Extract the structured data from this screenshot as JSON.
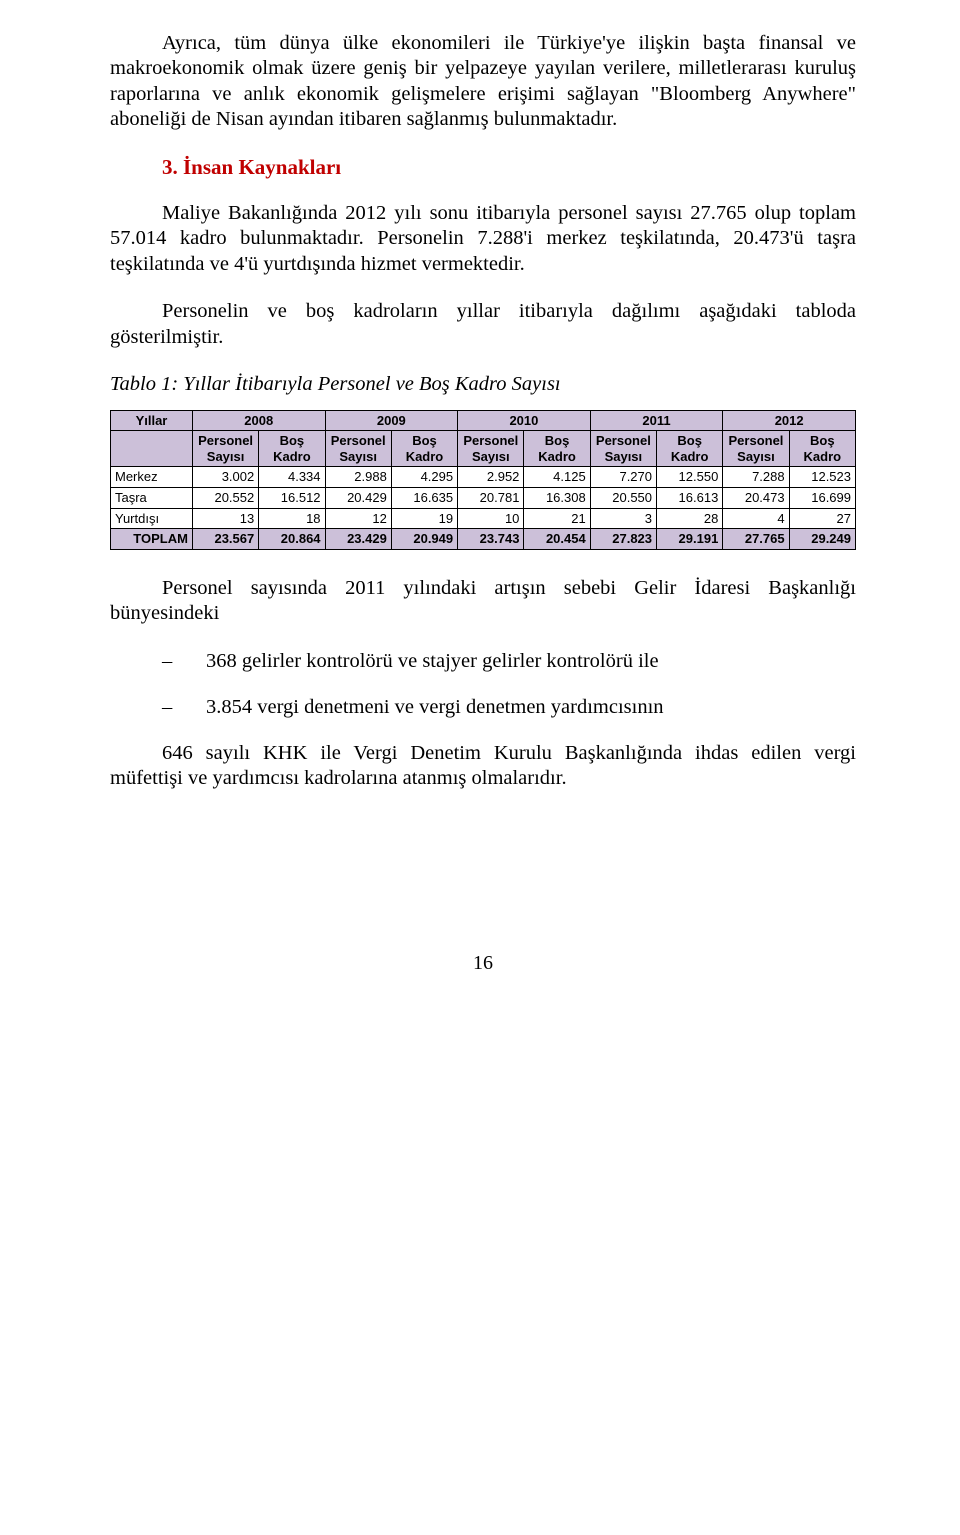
{
  "p1": "Ayrıca, tüm dünya ülke ekonomileri ile Türkiye'ye ilişkin başta finansal ve makroekonomik olmak üzere geniş bir yelpazeye yayılan verilere, milletlerarası kuruluş raporlarına ve anlık ekonomik gelişmelere erişimi sağlayan \"Bloomberg Anywhere\" aboneliği de Nisan ayından itibaren sağlanmış bulunmaktadır.",
  "section_title": "3. İnsan Kaynakları",
  "p2": "Maliye Bakanlığında 2012 yılı sonu itibarıyla personel sayısı 27.765 olup toplam 57.014 kadro bulunmaktadır. Personelin 7.288'i merkez teşkilatında, 20.473'ü taşra teşkilatında ve 4'ü yurtdışında hizmet vermektedir.",
  "p3": "Personelin ve boş kadroların yıllar itibarıyla dağılımı aşağıdaki tabloda gösterilmiştir.",
  "table_caption": "Tablo 1: Yıllar İtibarıyla Personel ve Boş Kadro Sayısı",
  "table": {
    "col_yillar": "Yıllar",
    "years": [
      "2008",
      "2009",
      "2010",
      "2011",
      "2012"
    ],
    "sub_personel": "Personel Sayısı",
    "sub_bos": "Boş Kadro",
    "rows": [
      {
        "label": "Merkez",
        "cells": [
          "3.002",
          "4.334",
          "2.988",
          "4.295",
          "2.952",
          "4.125",
          "7.270",
          "12.550",
          "7.288",
          "12.523"
        ]
      },
      {
        "label": "Taşra",
        "cells": [
          "20.552",
          "16.512",
          "20.429",
          "16.635",
          "20.781",
          "16.308",
          "20.550",
          "16.613",
          "20.473",
          "16.699"
        ]
      },
      {
        "label": "Yurtdışı",
        "cells": [
          "13",
          "18",
          "12",
          "19",
          "10",
          "21",
          "3",
          "28",
          "4",
          "27"
        ]
      }
    ],
    "total_label": "TOPLAM",
    "total_cells": [
      "23.567",
      "20.864",
      "23.429",
      "20.949",
      "23.743",
      "20.454",
      "27.823",
      "29.191",
      "27.765",
      "29.249"
    ]
  },
  "p4": "Personel sayısında 2011 yılındaki artışın sebebi Gelir İdaresi Başkanlığı bünyesindeki",
  "bullets": [
    "368 gelirler kontrolörü ve stajyer gelirler kontrolörü ile",
    "3.854 vergi denetmeni ve vergi denetmen yardımcısının"
  ],
  "p5": "646 sayılı KHK ile Vergi Denetim Kurulu Başkanlığında ihdas edilen vergi müfettişi ve yardımcısı kadrolarına atanmış olmalarıdır.",
  "page_number": "16",
  "colors": {
    "heading": "#c00000",
    "table_header_bg": "#ccc0d9",
    "text": "#000000"
  }
}
